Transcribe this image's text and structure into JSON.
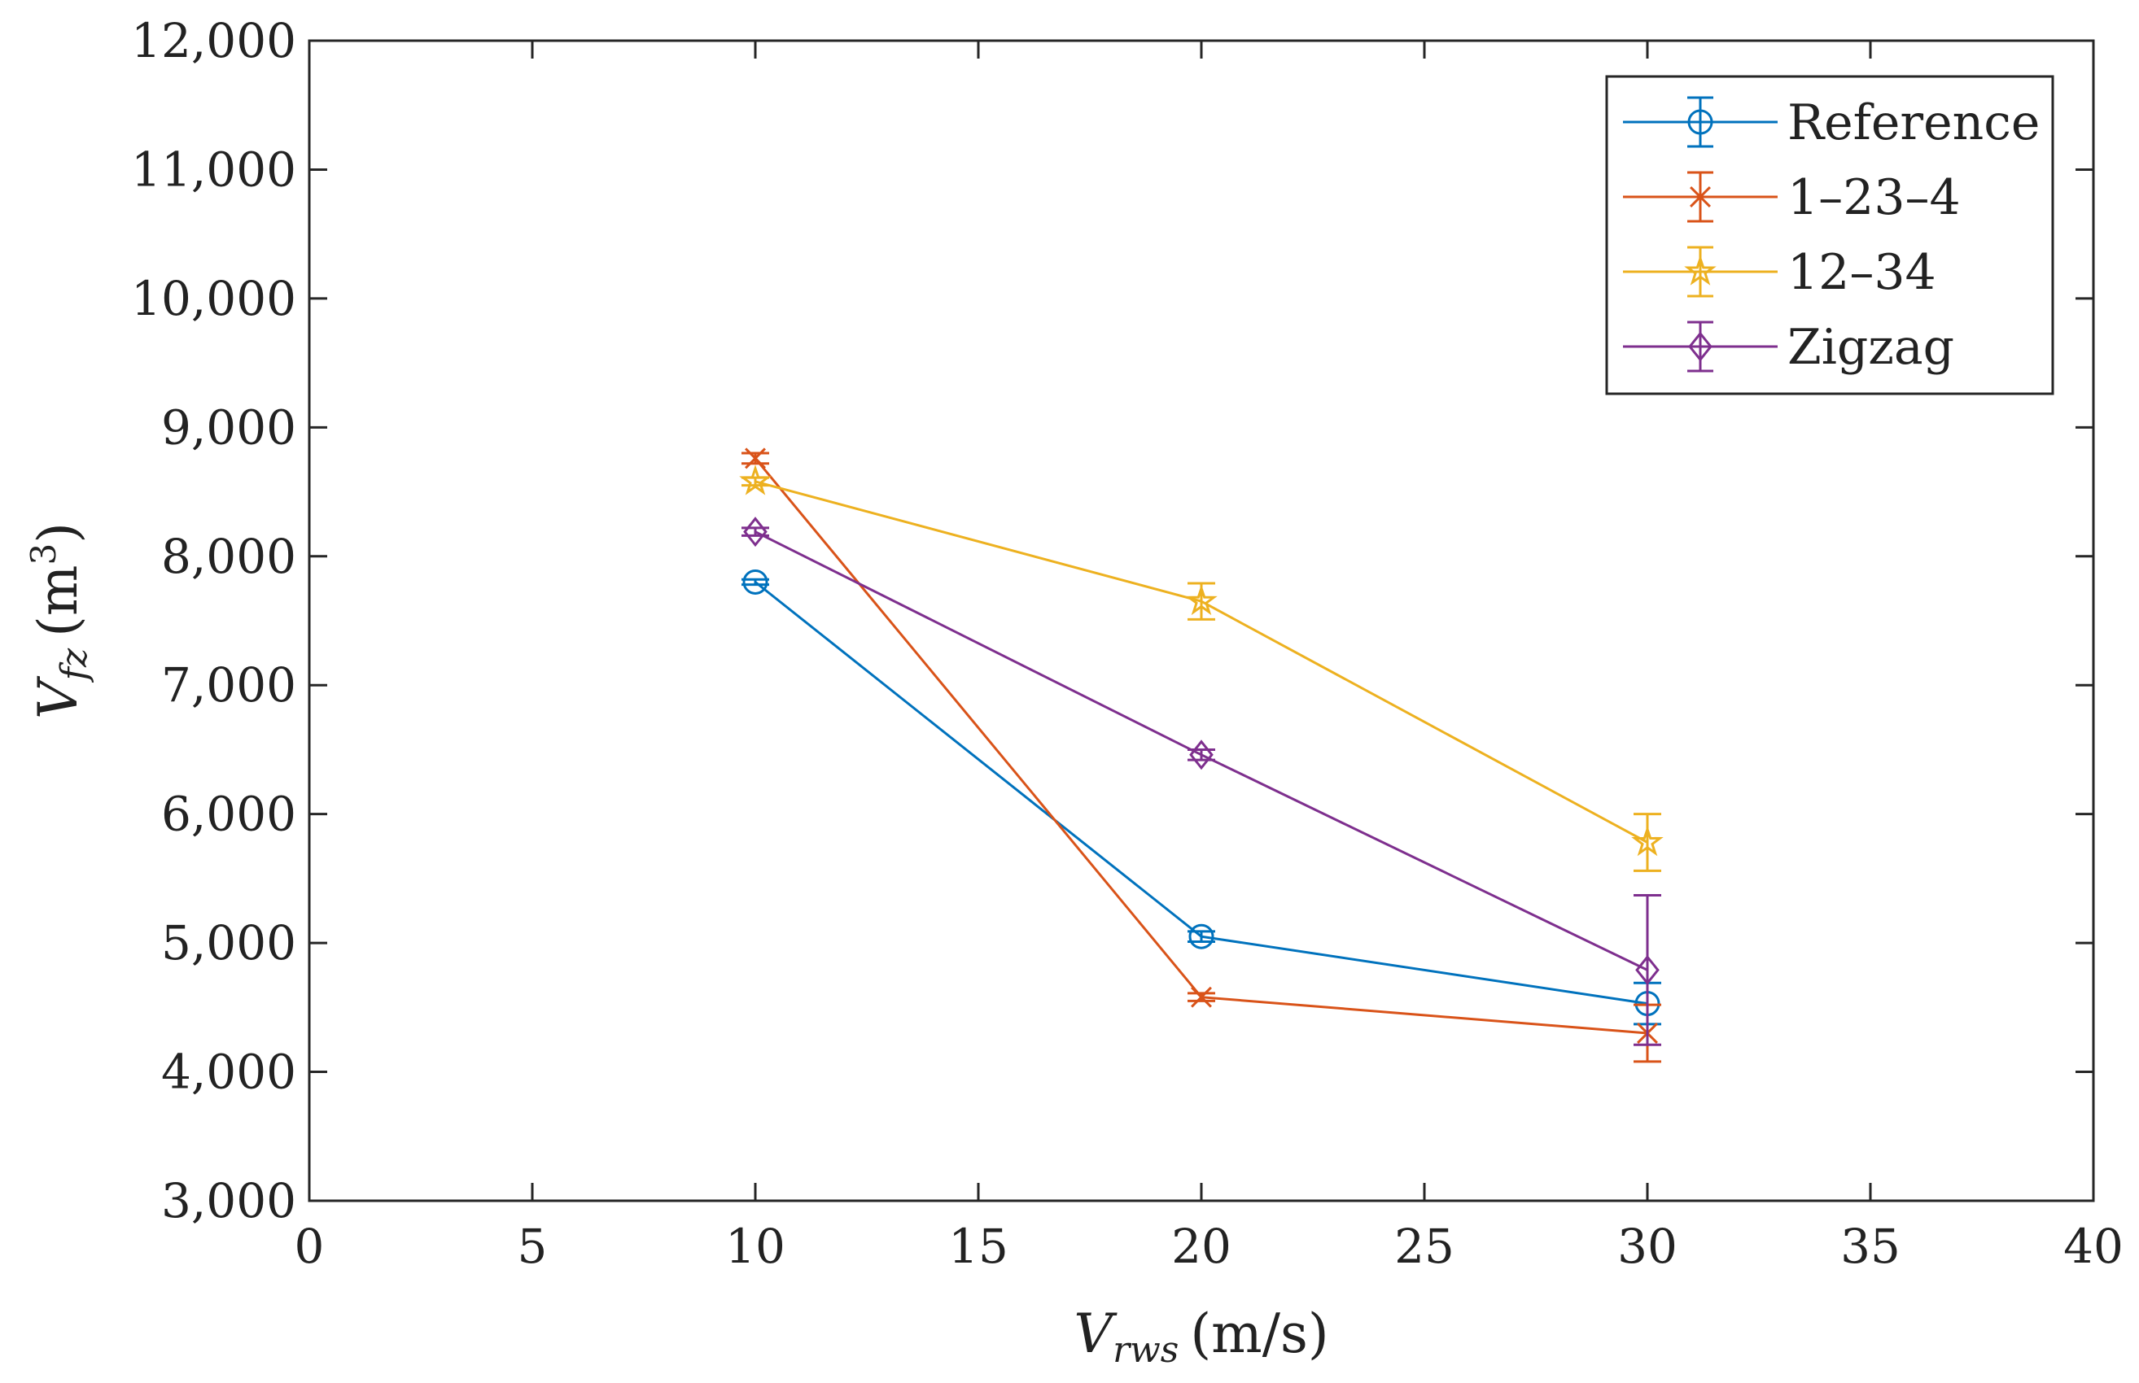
{
  "chart_data": {
    "type": "line",
    "title": "",
    "xlabel": {
      "symbol": "V",
      "subscript": "rws",
      "unit": "(m/s)"
    },
    "ylabel": {
      "symbol": "V",
      "subscript": "fz",
      "unit": "(m",
      "unit_exp": "3",
      "unit_close": ")"
    },
    "xlim": [
      0,
      40
    ],
    "ylim": [
      3000,
      12000
    ],
    "xticks": [
      0,
      5,
      10,
      15,
      20,
      25,
      30,
      35,
      40
    ],
    "xtick_labels": [
      "0",
      "5",
      "10",
      "15",
      "20",
      "25",
      "30",
      "35",
      "40"
    ],
    "yticks": [
      3000,
      4000,
      5000,
      6000,
      7000,
      8000,
      9000,
      10000,
      11000,
      12000
    ],
    "ytick_labels": [
      "3,000",
      "4,000",
      "5,000",
      "6,000",
      "7,000",
      "8,000",
      "9,000",
      "10,000",
      "11,000",
      "12,000"
    ],
    "grid": false,
    "legend_position": "top-right",
    "x": [
      10,
      20,
      30
    ],
    "series": [
      {
        "name": "Reference",
        "marker": "circle",
        "color": "#0072BD",
        "values": [
          7800,
          5050,
          4530
        ],
        "errors": [
          20,
          40,
          160
        ]
      },
      {
        "name": "1–23–4",
        "marker": "x",
        "color": "#D95319",
        "values": [
          8760,
          4580,
          4300
        ],
        "errors": [
          40,
          30,
          220
        ]
      },
      {
        "name": "12–34",
        "marker": "star",
        "color": "#EDB120",
        "values": [
          8580,
          7650,
          5780
        ],
        "errors": [
          30,
          140,
          220
        ]
      },
      {
        "name": "Zigzag",
        "marker": "diamond",
        "color": "#7E2F8E",
        "values": [
          8190,
          6460,
          4790
        ],
        "errors": [
          30,
          40,
          580
        ]
      }
    ]
  }
}
